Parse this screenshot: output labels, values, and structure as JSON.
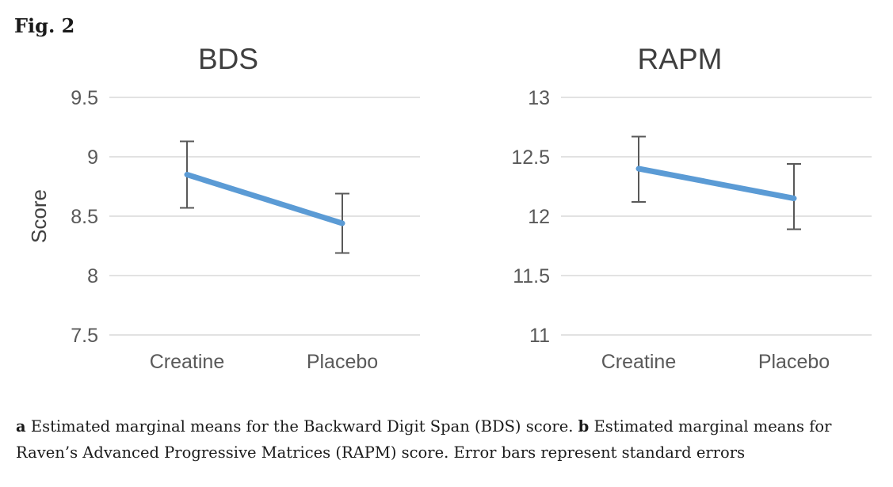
{
  "figure_label": "Fig. 2",
  "caption": {
    "a_label": "a",
    "a_text": "Estimated marginal means for the Backward Digit Span (BDS) score.",
    "b_label": "b",
    "b_text": "Estimated marginal means for Raven’s Advanced Progressive Matrices (RAPM) score. Error bars represent standard errors"
  },
  "colors": {
    "line": "#5B9BD5",
    "error_bar": "#595959",
    "gridline": "#D9D9D9",
    "tick_label": "#595959",
    "title": "#3f3f3f",
    "axis_label": "#404040"
  },
  "chart_data": [
    {
      "type": "line",
      "title": "BDS",
      "xlabel": "",
      "ylabel": "Score",
      "categories": [
        "Creatine",
        "Placebo"
      ],
      "series": [
        {
          "name": "Estimated marginal mean",
          "values": [
            8.85,
            8.44
          ],
          "error_low": [
            8.57,
            8.19
          ],
          "error_high": [
            9.13,
            8.69
          ]
        }
      ],
      "ylim": [
        7.5,
        9.5
      ],
      "yticks": [
        7.5,
        8,
        8.5,
        9,
        9.5
      ],
      "grid": true,
      "legend": false
    },
    {
      "type": "line",
      "title": "RAPM",
      "xlabel": "",
      "ylabel": "",
      "categories": [
        "Creatine",
        "Placebo"
      ],
      "series": [
        {
          "name": "Estimated marginal mean",
          "values": [
            12.4,
            12.15
          ],
          "error_low": [
            12.12,
            11.89
          ],
          "error_high": [
            12.67,
            12.44
          ]
        }
      ],
      "ylim": [
        11,
        13
      ],
      "yticks": [
        11,
        11.5,
        12,
        12.5,
        13
      ],
      "grid": true,
      "legend": false
    }
  ]
}
